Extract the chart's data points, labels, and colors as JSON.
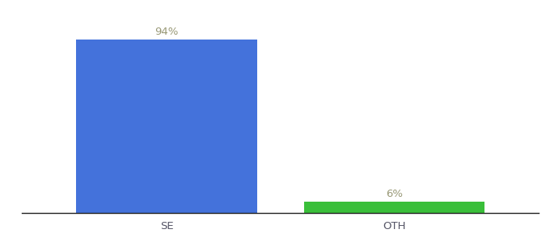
{
  "categories": [
    "SE",
    "OTH"
  ],
  "values": [
    94,
    6
  ],
  "bar_colors": [
    "#4472db",
    "#3abf3a"
  ],
  "labels": [
    "94%",
    "6%"
  ],
  "background_color": "#ffffff",
  "ylim": [
    0,
    105
  ],
  "bar_width": 0.35,
  "label_fontsize": 9.5,
  "tick_fontsize": 9.5,
  "label_color": "#999977",
  "tick_color": "#555566",
  "x_positions": [
    0.28,
    0.72
  ],
  "xlim": [
    0.0,
    1.0
  ]
}
